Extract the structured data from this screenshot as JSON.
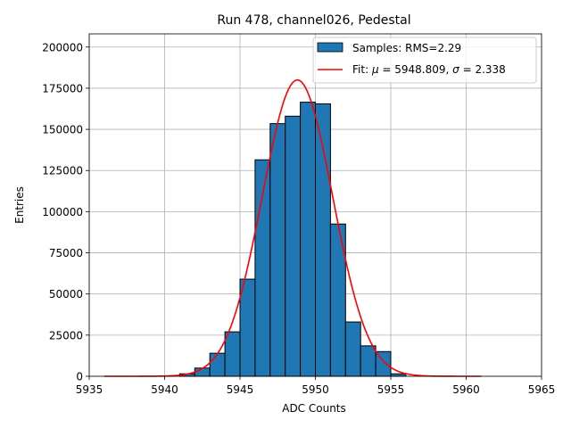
{
  "chart_data": {
    "type": "bar",
    "title": "Run 478, channel026, Pedestal",
    "xlabel": "ADC Counts",
    "ylabel": "Entries",
    "xlim": [
      5935,
      5965
    ],
    "ylim": [
      0,
      208000
    ],
    "xticks": [
      "5935",
      "5940",
      "5945",
      "5950",
      "5955",
      "5960",
      "5965"
    ],
    "yticks": [
      "0",
      "25000",
      "50000",
      "75000",
      "100000",
      "125000",
      "150000",
      "175000",
      "200000"
    ],
    "grid": true,
    "legend_position": "top-right",
    "bin_width": 1,
    "bins": [
      {
        "x": 5941,
        "value": 1500
      },
      {
        "x": 5942,
        "value": 5000
      },
      {
        "x": 5943,
        "value": 14000
      },
      {
        "x": 5944,
        "value": 27000
      },
      {
        "x": 5945,
        "value": 59000
      },
      {
        "x": 5946,
        "value": 131500
      },
      {
        "x": 5947,
        "value": 153500
      },
      {
        "x": 5948,
        "value": 158000
      },
      {
        "x": 5949,
        "value": 166500
      },
      {
        "x": 5950,
        "value": 165500
      },
      {
        "x": 5951,
        "value": 92500
      },
      {
        "x": 5952,
        "value": 33000
      },
      {
        "x": 5953,
        "value": 18500
      },
      {
        "x": 5954,
        "value": 15000
      },
      {
        "x": 5955,
        "value": 1500
      }
    ],
    "fit": {
      "mu": 5948.809,
      "sigma": 2.338,
      "amplitude": 180000,
      "x_range": [
        5936,
        5961
      ]
    },
    "series": [
      {
        "name": "Samples: RMS=2.29",
        "type": "bar",
        "color": "#1f77b4"
      },
      {
        "name": "Fit: μ = 5948.809, σ = 2.338",
        "type": "line",
        "color": "#ff0000"
      }
    ]
  },
  "legend": {
    "samples_label": "Samples: RMS=2.29",
    "fit_prefix": "Fit: ",
    "mu_symbol": "μ",
    "fit_mid": " = 5948.809, ",
    "sigma_symbol": "σ",
    "fit_suffix": " = 2.338"
  },
  "colors": {
    "bar_fill": "#1f77b4",
    "bar_edge": "#000000",
    "fit_line": "#ff0000",
    "grid": "#b0b0b0"
  }
}
